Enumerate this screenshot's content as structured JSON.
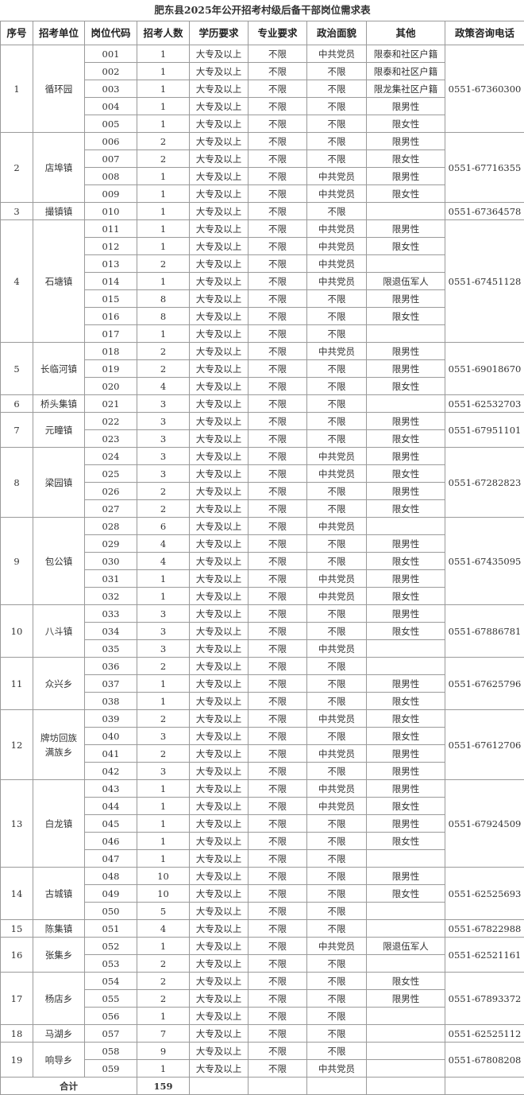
{
  "title": "肥东县2025年公开招考村级后备干部岗位需求表",
  "headers": [
    "序号",
    "招考单位",
    "岗位代码",
    "招考人数",
    "学历要求",
    "专业要求",
    "政治面貌",
    "其他",
    "政策咨询电话"
  ],
  "groups": [
    {
      "seq": "1",
      "unit": "循环园",
      "phone": "0551-67360300",
      "positions": [
        [
          "001",
          "1",
          "大专及以上",
          "不限",
          "中共党员",
          "限泰和社区户籍"
        ],
        [
          "002",
          "1",
          "大专及以上",
          "不限",
          "不限",
          "限泰和社区户籍"
        ],
        [
          "003",
          "1",
          "大专及以上",
          "不限",
          "不限",
          "限龙集社区户籍"
        ],
        [
          "004",
          "1",
          "大专及以上",
          "不限",
          "不限",
          "限男性"
        ],
        [
          "005",
          "1",
          "大专及以上",
          "不限",
          "不限",
          "限女性"
        ]
      ]
    },
    {
      "seq": "2",
      "unit": "店埠镇",
      "phone": "0551-67716355",
      "positions": [
        [
          "006",
          "2",
          "大专及以上",
          "不限",
          "不限",
          "限男性"
        ],
        [
          "007",
          "2",
          "大专及以上",
          "不限",
          "不限",
          "限女性"
        ],
        [
          "008",
          "1",
          "大专及以上",
          "不限",
          "中共党员",
          "限男性"
        ],
        [
          "009",
          "1",
          "大专及以上",
          "不限",
          "中共党员",
          "限女性"
        ]
      ]
    },
    {
      "seq": "3",
      "unit": "撮镇镇",
      "phone": "0551-67364578",
      "positions": [
        [
          "010",
          "1",
          "大专及以上",
          "不限",
          "不限",
          ""
        ]
      ]
    },
    {
      "seq": "4",
      "unit": "石塘镇",
      "phone": "0551-67451128",
      "positions": [
        [
          "011",
          "1",
          "大专及以上",
          "不限",
          "中共党员",
          "限男性"
        ],
        [
          "012",
          "1",
          "大专及以上",
          "不限",
          "中共党员",
          "限女性"
        ],
        [
          "013",
          "2",
          "大专及以上",
          "不限",
          "中共党员",
          ""
        ],
        [
          "014",
          "1",
          "大专及以上",
          "不限",
          "中共党员",
          "限退伍军人"
        ],
        [
          "015",
          "8",
          "大专及以上",
          "不限",
          "不限",
          "限男性"
        ],
        [
          "016",
          "8",
          "大专及以上",
          "不限",
          "不限",
          "限女性"
        ],
        [
          "017",
          "1",
          "大专及以上",
          "不限",
          "不限",
          ""
        ]
      ]
    },
    {
      "seq": "5",
      "unit": "长临河镇",
      "phone": "0551-69018670",
      "positions": [
        [
          "018",
          "2",
          "大专及以上",
          "不限",
          "中共党员",
          "限男性"
        ],
        [
          "019",
          "2",
          "大专及以上",
          "不限",
          "不限",
          "限男性"
        ],
        [
          "020",
          "4",
          "大专及以上",
          "不限",
          "不限",
          "限女性"
        ]
      ]
    },
    {
      "seq": "6",
      "unit": "桥头集镇",
      "phone": "0551-62532703",
      "positions": [
        [
          "021",
          "3",
          "大专及以上",
          "不限",
          "不限",
          ""
        ]
      ]
    },
    {
      "seq": "7",
      "unit": "元疃镇",
      "phone": "0551-67951101",
      "positions": [
        [
          "022",
          "3",
          "大专及以上",
          "不限",
          "不限",
          "限男性"
        ],
        [
          "023",
          "3",
          "大专及以上",
          "不限",
          "不限",
          "限女性"
        ]
      ]
    },
    {
      "seq": "8",
      "unit": "梁园镇",
      "phone": "0551-67282823",
      "positions": [
        [
          "024",
          "3",
          "大专及以上",
          "不限",
          "中共党员",
          "限男性"
        ],
        [
          "025",
          "3",
          "大专及以上",
          "不限",
          "中共党员",
          "限女性"
        ],
        [
          "026",
          "2",
          "大专及以上",
          "不限",
          "不限",
          "限男性"
        ],
        [
          "027",
          "2",
          "大专及以上",
          "不限",
          "不限",
          "限女性"
        ]
      ]
    },
    {
      "seq": "9",
      "unit": "包公镇",
      "phone": "0551-67435095",
      "positions": [
        [
          "028",
          "6",
          "大专及以上",
          "不限",
          "中共党员",
          ""
        ],
        [
          "029",
          "4",
          "大专及以上",
          "不限",
          "不限",
          "限男性"
        ],
        [
          "030",
          "4",
          "大专及以上",
          "不限",
          "不限",
          "限女性"
        ],
        [
          "031",
          "1",
          "大专及以上",
          "不限",
          "中共党员",
          "限男性"
        ],
        [
          "032",
          "1",
          "大专及以上",
          "不限",
          "中共党员",
          "限女性"
        ]
      ]
    },
    {
      "seq": "10",
      "unit": "八斗镇",
      "phone": "0551-67886781",
      "positions": [
        [
          "033",
          "3",
          "大专及以上",
          "不限",
          "不限",
          "限男性"
        ],
        [
          "034",
          "3",
          "大专及以上",
          "不限",
          "不限",
          "限女性"
        ],
        [
          "035",
          "3",
          "大专及以上",
          "不限",
          "中共党员",
          ""
        ]
      ]
    },
    {
      "seq": "11",
      "unit": "众兴乡",
      "phone": "0551-67625796",
      "positions": [
        [
          "036",
          "2",
          "大专及以上",
          "不限",
          "不限",
          ""
        ],
        [
          "037",
          "1",
          "大专及以上",
          "不限",
          "不限",
          "限男性"
        ],
        [
          "038",
          "1",
          "大专及以上",
          "不限",
          "不限",
          "限女性"
        ]
      ]
    },
    {
      "seq": "12",
      "unit": "牌坊回族满族乡",
      "phone": "0551-67612706",
      "positions": [
        [
          "039",
          "2",
          "大专及以上",
          "不限",
          "中共党员",
          "限女性"
        ],
        [
          "040",
          "3",
          "大专及以上",
          "不限",
          "不限",
          "限女性"
        ],
        [
          "041",
          "2",
          "大专及以上",
          "不限",
          "中共党员",
          "限男性"
        ],
        [
          "042",
          "3",
          "大专及以上",
          "不限",
          "不限",
          "限男性"
        ]
      ]
    },
    {
      "seq": "13",
      "unit": "白龙镇",
      "phone": "0551-67924509",
      "positions": [
        [
          "043",
          "1",
          "大专及以上",
          "不限",
          "中共党员",
          "限男性"
        ],
        [
          "044",
          "1",
          "大专及以上",
          "不限",
          "中共党员",
          "限女性"
        ],
        [
          "045",
          "1",
          "大专及以上",
          "不限",
          "不限",
          "限男性"
        ],
        [
          "046",
          "1",
          "大专及以上",
          "不限",
          "不限",
          "限女性"
        ],
        [
          "047",
          "1",
          "大专及以上",
          "不限",
          "不限",
          ""
        ]
      ]
    },
    {
      "seq": "14",
      "unit": "古城镇",
      "phone": "0551-62525693",
      "positions": [
        [
          "048",
          "10",
          "大专及以上",
          "不限",
          "不限",
          "限男性"
        ],
        [
          "049",
          "10",
          "大专及以上",
          "不限",
          "不限",
          "限女性"
        ],
        [
          "050",
          "5",
          "大专及以上",
          "不限",
          "不限",
          ""
        ]
      ]
    },
    {
      "seq": "15",
      "unit": "陈集镇",
      "phone": "0551-67822988",
      "positions": [
        [
          "051",
          "4",
          "大专及以上",
          "不限",
          "不限",
          ""
        ]
      ]
    },
    {
      "seq": "16",
      "unit": "张集乡",
      "phone": "0551-62521161",
      "positions": [
        [
          "052",
          "1",
          "大专及以上",
          "不限",
          "中共党员",
          "限退伍军人"
        ],
        [
          "053",
          "2",
          "大专及以上",
          "不限",
          "不限",
          ""
        ]
      ]
    },
    {
      "seq": "17",
      "unit": "杨店乡",
      "phone": "0551-67893372",
      "positions": [
        [
          "054",
          "2",
          "大专及以上",
          "不限",
          "不限",
          "限女性"
        ],
        [
          "055",
          "2",
          "大专及以上",
          "不限",
          "不限",
          "限男性"
        ],
        [
          "056",
          "1",
          "大专及以上",
          "不限",
          "不限",
          ""
        ]
      ]
    },
    {
      "seq": "18",
      "unit": "马湖乡",
      "phone": "0551-62525112",
      "positions": [
        [
          "057",
          "7",
          "大专及以上",
          "不限",
          "不限",
          ""
        ]
      ]
    },
    {
      "seq": "19",
      "unit": "响导乡",
      "phone": "0551-67808208",
      "positions": [
        [
          "058",
          "9",
          "大专及以上",
          "不限",
          "不限",
          ""
        ],
        [
          "059",
          "1",
          "大专及以上",
          "不限",
          "中共党员",
          ""
        ]
      ]
    }
  ],
  "total": {
    "label": "合计",
    "count": "159"
  }
}
